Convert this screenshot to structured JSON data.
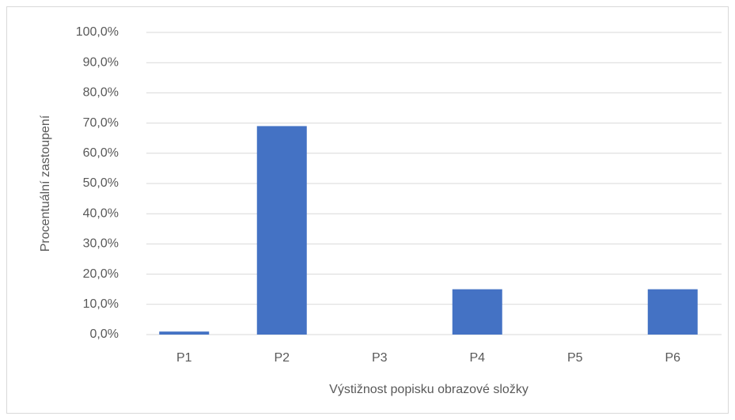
{
  "chart_data": {
    "type": "bar",
    "y_label": "Procentuální zastoupení",
    "x_label": "Výstižnost popisku obrazové složky",
    "categories": [
      "P1",
      "P2",
      "P3",
      "P4",
      "P5",
      "P6"
    ],
    "values": [
      1.0,
      69.0,
      0,
      15.0,
      0,
      15.0
    ],
    "color": "#4472c4",
    "ylim": [
      0,
      100
    ],
    "yticks": [
      {
        "value": 0,
        "label": "0,0%"
      },
      {
        "value": 10,
        "label": "10,0%"
      },
      {
        "value": 20,
        "label": "20,0%"
      },
      {
        "value": 30,
        "label": "30,0%"
      },
      {
        "value": 40,
        "label": "40,0%"
      },
      {
        "value": 50,
        "label": "50,0%"
      },
      {
        "value": 60,
        "label": "60,0%"
      },
      {
        "value": 70,
        "label": "70,0%"
      },
      {
        "value": 80,
        "label": "80,0%"
      },
      {
        "value": 90,
        "label": "90,0%"
      },
      {
        "value": 100,
        "label": "100,0%"
      }
    ],
    "grid": true
  }
}
